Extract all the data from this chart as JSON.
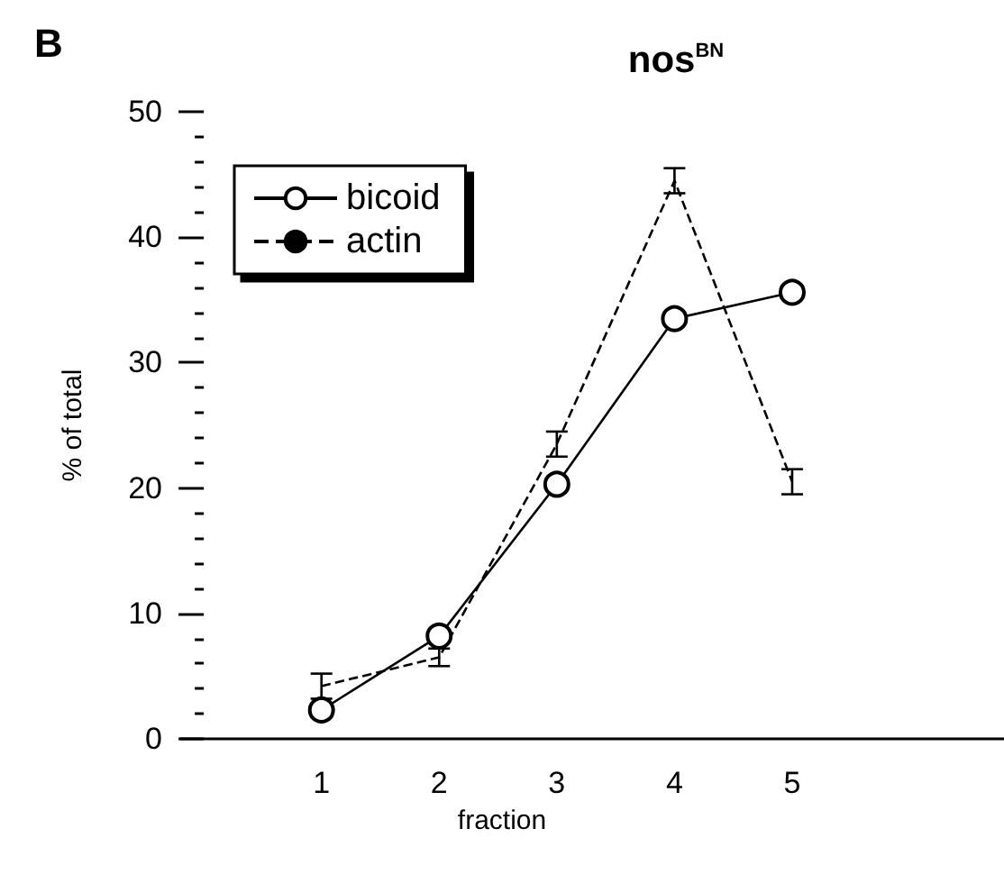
{
  "chart_data": {
    "type": "line",
    "title": "nos$^{BN}$",
    "xlabel": "fraction",
    "ylabel": "% of total",
    "annotations": [
      "B"
    ],
    "x": [
      1,
      2,
      3,
      4,
      5
    ],
    "xlim": [
      -0.2,
      6.8
    ],
    "xticks": [
      1,
      2,
      3,
      4,
      5
    ],
    "ylim": [
      0,
      50
    ],
    "yticks": [
      0,
      10,
      20,
      30,
      40,
      50
    ],
    "series": [
      {
        "name": "bicoid",
        "color": "#000000",
        "values": [
          2.3,
          8.2,
          20.3,
          33.5,
          35.6
        ],
        "marker": "circle",
        "line_style": "solid"
      },
      {
        "name": "actin",
        "color": "#000000",
        "values": [
          4.2,
          6.5,
          23.5,
          44.5,
          20.5
        ],
        "errors": [
          1,
          0.7,
          1,
          1,
          1
        ],
        "marker": "none",
        "line_style": "dashed"
      }
    ],
    "legend": "top left",
    "grid": false
  }
}
